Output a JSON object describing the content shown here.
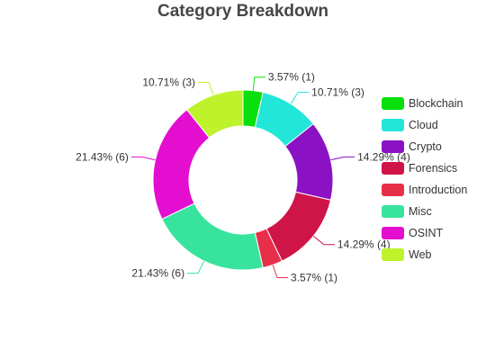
{
  "chart_data": {
    "type": "pie",
    "title": "Category Breakdown",
    "legend_position": "right",
    "slices": [
      {
        "name": "Blockchain",
        "value": 1,
        "label": "3.57% (1)",
        "color": "#08df0b"
      },
      {
        "name": "Cloud",
        "value": 3,
        "label": "10.71% (3)",
        "color": "#22e7d8"
      },
      {
        "name": "Crypto",
        "value": 4,
        "label": "14.29% (4)",
        "color": "#8b12c4"
      },
      {
        "name": "Forensics",
        "value": 4,
        "label": "14.29% (4)",
        "color": "#cf1447"
      },
      {
        "name": "Introduction",
        "value": 1,
        "label": "3.57% (1)",
        "color": "#e82f49"
      },
      {
        "name": "Misc",
        "value": 6,
        "label": "21.43% (6)",
        "color": "#38e49d"
      },
      {
        "name": "OSINT",
        "value": 6,
        "label": "21.43% (6)",
        "color": "#e30ecf"
      },
      {
        "name": "Web",
        "value": 3,
        "label": "10.71% (3)",
        "color": "#bef22a"
      }
    ]
  }
}
